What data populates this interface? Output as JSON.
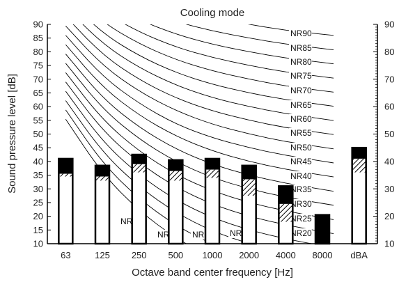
{
  "chart_data": {
    "type": "bar",
    "title": "Cooling mode",
    "xlabel": "Octave band center frequency [Hz]",
    "ylabel": "Sound pressure level [dB]",
    "ylim": [
      10,
      90
    ],
    "y_ticks": [
      10,
      15,
      20,
      25,
      30,
      35,
      40,
      45,
      50,
      55,
      60,
      65,
      70,
      75,
      80,
      85,
      90
    ],
    "y_ticks_right": [
      10,
      20,
      30,
      40,
      50,
      60,
      70,
      80,
      90
    ],
    "grid": false,
    "categories": [
      "63",
      "125",
      "250",
      "500",
      "1000",
      "2000",
      "4000",
      "8000",
      "dBA"
    ],
    "bars": [
      {
        "category": "63",
        "white_top": 34.5,
        "hatch_top": 35.5,
        "total": 41
      },
      {
        "category": "125",
        "white_top": 33,
        "hatch_top": 34.5,
        "total": 38.5
      },
      {
        "category": "250",
        "white_top": 36,
        "hatch_top": 39,
        "total": 42.5
      },
      {
        "category": "500",
        "white_top": 33,
        "hatch_top": 36.5,
        "total": 40.5
      },
      {
        "category": "1000",
        "white_top": 34,
        "hatch_top": 37,
        "total": 41
      },
      {
        "category": "2000",
        "white_top": 27.5,
        "hatch_top": 33.5,
        "total": 38.5
      },
      {
        "category": "4000",
        "white_top": 18,
        "hatch_top": 24.5,
        "total": 31
      },
      {
        "category": "8000",
        "white_top": 10,
        "hatch_top": 10,
        "total": 20.5
      },
      {
        "category": "dBA",
        "white_top": 36,
        "hatch_top": 41,
        "total": 45
      }
    ],
    "nr_curves": [
      {
        "name": "NR0",
        "levels": [
          55.4,
          35.5,
          22.0,
          12.0,
          4.8,
          0,
          -3.5,
          -6.1,
          null
        ]
      },
      {
        "name": "NR5",
        "levels": [
          58.8,
          39.4,
          26.3,
          16.6,
          9.7,
          5,
          1.6,
          -1.0,
          null
        ]
      },
      {
        "name": "NR10",
        "levels": [
          62.2,
          43.4,
          30.7,
          21.3,
          14.5,
          10,
          6.6,
          4.2,
          null
        ]
      },
      {
        "name": "NR15",
        "levels": [
          65.6,
          47.3,
          35.0,
          25.9,
          19.4,
          15,
          11.7,
          9.3,
          null
        ]
      },
      {
        "name": "NR20",
        "levels": [
          69.0,
          51.3,
          39.4,
          30.6,
          24.3,
          20,
          16.8,
          14.4,
          null
        ]
      },
      {
        "name": "NR25",
        "levels": [
          72.4,
          55.2,
          43.7,
          35.2,
          29.2,
          25,
          21.9,
          19.5,
          null
        ]
      },
      {
        "name": "NR30",
        "levels": [
          75.8,
          59.2,
          48.1,
          39.9,
          34.0,
          30,
          26.9,
          24.7,
          null
        ]
      },
      {
        "name": "NR35",
        "levels": [
          79.2,
          63.1,
          52.4,
          44.5,
          38.9,
          35,
          32.0,
          29.8,
          null
        ]
      },
      {
        "name": "NR40",
        "levels": [
          82.6,
          67.1,
          56.8,
          49.2,
          43.8,
          40,
          37.1,
          35.0,
          null
        ]
      },
      {
        "name": "NR45",
        "levels": [
          86.0,
          71.0,
          61.1,
          53.6,
          48.6,
          45,
          42.2,
          40.1,
          null
        ]
      },
      {
        "name": "NR50",
        "levels": [
          89.4,
          75.0,
          65.5,
          58.5,
          53.5,
          50,
          47.2,
          45.2,
          null
        ]
      },
      {
        "name": "NR55",
        "levels": [
          92.9,
          78.9,
          69.8,
          63.1,
          58.4,
          55,
          52.3,
          50.4,
          null
        ]
      },
      {
        "name": "NR60",
        "levels": [
          96.3,
          82.9,
          74.2,
          67.8,
          63.2,
          60,
          57.4,
          55.5,
          null
        ]
      },
      {
        "name": "NR65",
        "levels": [
          99.7,
          86.8,
          78.5,
          72.4,
          68.1,
          65,
          62.5,
          60.7,
          null
        ]
      },
      {
        "name": "NR70",
        "levels": [
          103.1,
          90.8,
          82.9,
          77.1,
          73.0,
          70,
          67.5,
          65.8,
          null
        ]
      },
      {
        "name": "NR75",
        "levels": [
          106.5,
          94.7,
          87.2,
          81.7,
          77.9,
          75,
          72.6,
          70.9,
          null
        ]
      },
      {
        "name": "NR80",
        "levels": [
          109.9,
          98.7,
          91.6,
          86.4,
          82.7,
          80,
          77.7,
          76.1,
          null
        ]
      },
      {
        "name": "NR85",
        "levels": [
          113.3,
          102.6,
          95.9,
          91.0,
          87.6,
          85,
          82.8,
          81.2,
          null
        ]
      },
      {
        "name": "NR90",
        "levels": [
          116.7,
          106.6,
          100.3,
          95.7,
          92.5,
          90,
          87.8,
          86.4,
          null
        ]
      }
    ]
  }
}
